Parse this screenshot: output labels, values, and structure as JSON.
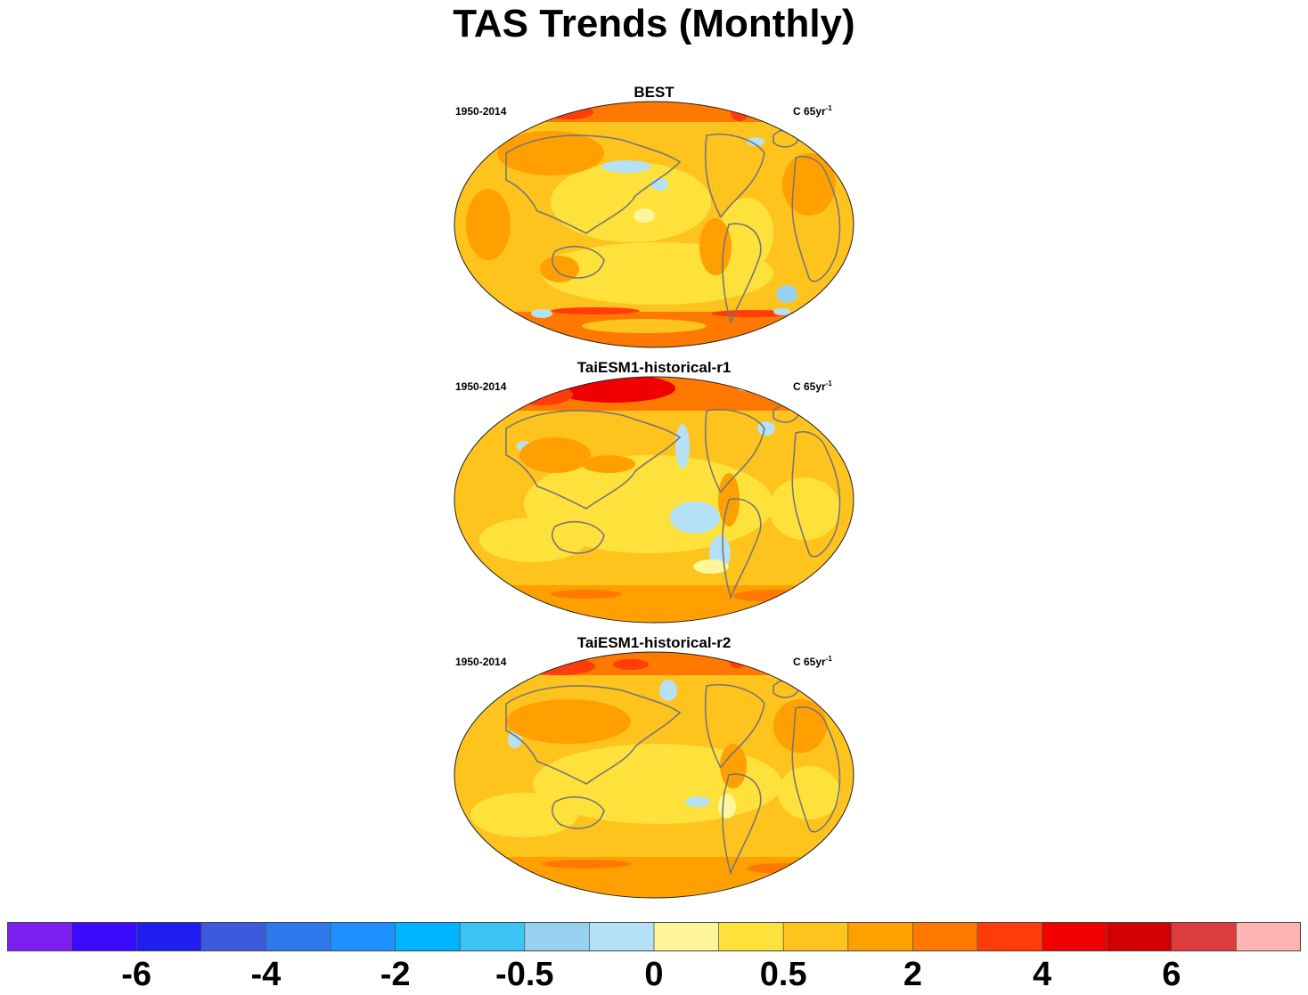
{
  "figure": {
    "title": "TAS Trends (Monthly)"
  },
  "panels": [
    {
      "title": "BEST",
      "period": "1950-2014",
      "units_base": "C 65yr",
      "units_exp": "-1"
    },
    {
      "title": "TaiESM1-historical-r1",
      "period": "1950-2014",
      "units_base": "C 65yr",
      "units_exp": "-1"
    },
    {
      "title": "TaiESM1-historical-r2",
      "period": "1950-2014",
      "units_base": "C 65yr",
      "units_exp": "-1"
    }
  ],
  "chart_data": {
    "type": "heatmap",
    "title": "TAS Trends (Monthly)",
    "projection": "Robinson (Pacific-centred)",
    "maps": [
      {
        "name": "BEST",
        "period": "1950-2014",
        "units": "C 65yr-1",
        "regions": [
          {
            "region": "Arctic (Siberia / Greenland)",
            "level": "2 to 4"
          },
          {
            "region": "Northern Hemisphere continents",
            "level": "0.5 to 2"
          },
          {
            "region": "North Pacific (central)",
            "level": "-0.5 to 0"
          },
          {
            "region": "North Atlantic (south of Greenland)",
            "level": "-0.5 to 0"
          },
          {
            "region": "Tropical / subtropical oceans",
            "level": "0 to 0.5"
          },
          {
            "region": "Southern Ocean",
            "level": "0.5 to 2"
          },
          {
            "region": "Antarctic coast (Weddell / Ross)",
            "level": "2 to 4"
          },
          {
            "region": "Antarctic interior (patches)",
            "level": "-0.5 to 0"
          }
        ]
      },
      {
        "name": "TaiESM1-historical-r1",
        "period": "1950-2014",
        "units": "C 65yr-1",
        "regions": [
          {
            "region": "Arctic (Barents / Kara Sea)",
            "level": "4 to 5"
          },
          {
            "region": "Northern Hemisphere continents",
            "level": "0.5 to 2"
          },
          {
            "region": "Northeast Pacific (near North America)",
            "level": "-0.5 to 0"
          },
          {
            "region": "Eastern tropical Pacific (off South America)",
            "level": "-0.5 to 0"
          },
          {
            "region": "Central Pacific",
            "level": "0 to 0.5"
          },
          {
            "region": "Tropical / subtropical oceans",
            "level": "0.5 to 1"
          },
          {
            "region": "Southern Ocean",
            "level": "1 to 3"
          }
        ]
      },
      {
        "name": "TaiESM1-historical-r2",
        "period": "1950-2014",
        "units": "C 65yr-1",
        "regions": [
          {
            "region": "Arctic (Siberia / Greenland)",
            "level": "2 to 4"
          },
          {
            "region": "Northern Hemisphere continents",
            "level": "0.5 to 2"
          },
          {
            "region": "Northeast Pacific (near North America)",
            "level": "-0.5 to 0"
          },
          {
            "region": "Eastern tropical Pacific",
            "level": "-0.5 to 0"
          },
          {
            "region": "Tropical / subtropical oceans",
            "level": "0 to 0.5"
          },
          {
            "region": "Southern Ocean",
            "level": "0.5 to 2"
          }
        ]
      }
    ],
    "colorbar": {
      "colors": [
        "#7d1ef0",
        "#3c0aff",
        "#1e1ef0",
        "#3c5adc",
        "#2d78eb",
        "#1e90ff",
        "#00b4ff",
        "#3cc3f5",
        "#96d2f0",
        "#b4e1f5",
        "#fff59b",
        "#ffe13c",
        "#ffc31e",
        "#ffa000",
        "#ff7800",
        "#ff3c0a",
        "#f00000",
        "#d20000",
        "#dc3c3c",
        "#ffb4b4"
      ],
      "labels": [
        {
          "text": "-6",
          "boundary": 2
        },
        {
          "text": "-4",
          "boundary": 4
        },
        {
          "text": "-2",
          "boundary": 6
        },
        {
          "text": "-0.5",
          "boundary": 8
        },
        {
          "text": "0",
          "boundary": 10
        },
        {
          "text": "0.5",
          "boundary": 12
        },
        {
          "text": "2",
          "boundary": 14
        },
        {
          "text": "4",
          "boundary": 16
        },
        {
          "text": "6",
          "boundary": 18
        }
      ]
    }
  }
}
